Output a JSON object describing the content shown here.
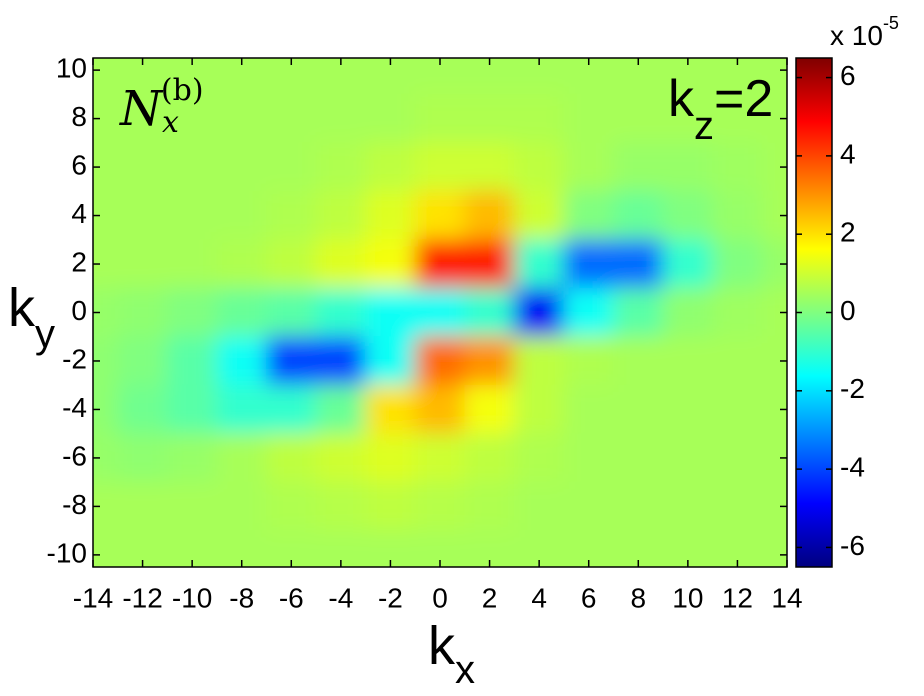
{
  "chart_data": {
    "type": "heatmap",
    "x_label": {
      "base": "k",
      "sub": "x"
    },
    "y_label": {
      "base": "k",
      "sub": "y"
    },
    "annotation_kz": {
      "base": "k",
      "sub": "z",
      "rest": "=2"
    },
    "annotation_quantity": {
      "base": "N",
      "sub": "x",
      "sup": "(b)"
    },
    "colorbar_multiplier": {
      "base": "x 10",
      "exponent": "-5"
    },
    "colormap": "jet",
    "x": [
      -14,
      -12,
      -10,
      -8,
      -6,
      -4,
      -2,
      0,
      2,
      4,
      6,
      8,
      10,
      12,
      14
    ],
    "y": [
      10,
      8,
      6,
      4,
      2,
      0,
      -2,
      -4,
      -6,
      -8,
      -10
    ],
    "z": [
      [
        0.5,
        0.5,
        0.5,
        0.5,
        0.5,
        0.5,
        0.5,
        0.5,
        0.5,
        0.5,
        0.5,
        0.5,
        0.5,
        0.5,
        0.5
      ],
      [
        0.5,
        0.5,
        0.5,
        0.5,
        0.5,
        0.5,
        0.5,
        0.6,
        0.6,
        0.6,
        0.5,
        0.5,
        0.5,
        0.5,
        0.5
      ],
      [
        0.5,
        0.5,
        0.5,
        0.5,
        0.5,
        0.6,
        0.8,
        1,
        1,
        0.8,
        0.5,
        0.3,
        0.3,
        0.4,
        0.5
      ],
      [
        0.5,
        0.5,
        0.5,
        0.5,
        0.6,
        0.8,
        1.2,
        2,
        2.5,
        1,
        0,
        -0.3,
        0,
        0.3,
        0.5
      ],
      [
        0.5,
        0.5,
        0.5,
        0.6,
        0.8,
        1.2,
        1.5,
        4.5,
        4.5,
        -1,
        -3.5,
        -3.5,
        -1,
        0,
        0.3
      ],
      [
        0.3,
        0.2,
        0,
        -0.3,
        -0.5,
        -1,
        -1.5,
        -1.5,
        -1,
        -5,
        -1.5,
        -0.5,
        0.2,
        0.4,
        0.5
      ],
      [
        0.2,
        0,
        -0.5,
        -1.5,
        -4,
        -4,
        -1.5,
        3.5,
        3,
        0.8,
        0.6,
        0.5,
        0.5,
        0.5,
        0.5
      ],
      [
        0.2,
        -0.2,
        -0.5,
        -1,
        -1,
        -0.3,
        2,
        2.5,
        1.5,
        0.8,
        0.5,
        0.5,
        0.5,
        0.5,
        0.5
      ],
      [
        0.3,
        0.2,
        0.3,
        0.5,
        0.8,
        1,
        1.2,
        1,
        0.8,
        0.6,
        0.5,
        0.5,
        0.5,
        0.5,
        0.5
      ],
      [
        0.5,
        0.5,
        0.5,
        0.5,
        0.6,
        0.7,
        0.8,
        0.7,
        0.6,
        0.5,
        0.5,
        0.5,
        0.5,
        0.5,
        0.5
      ],
      [
        0.5,
        0.5,
        0.5,
        0.5,
        0.5,
        0.5,
        0.5,
        0.5,
        0.5,
        0.5,
        0.5,
        0.5,
        0.5,
        0.5,
        0.5
      ]
    ],
    "xlim": [
      -14,
      14
    ],
    "ylim": [
      -10.5,
      10.5
    ],
    "clim": [
      -6.5,
      6.5
    ],
    "xticks": [
      -14,
      -12,
      -10,
      -8,
      -6,
      -4,
      -2,
      0,
      2,
      4,
      6,
      8,
      10,
      12,
      14
    ],
    "yticks": [
      -10,
      -8,
      -6,
      -4,
      -2,
      0,
      2,
      4,
      6,
      8,
      10
    ],
    "cticks": [
      -6,
      -4,
      -2,
      0,
      2,
      4,
      6
    ]
  }
}
